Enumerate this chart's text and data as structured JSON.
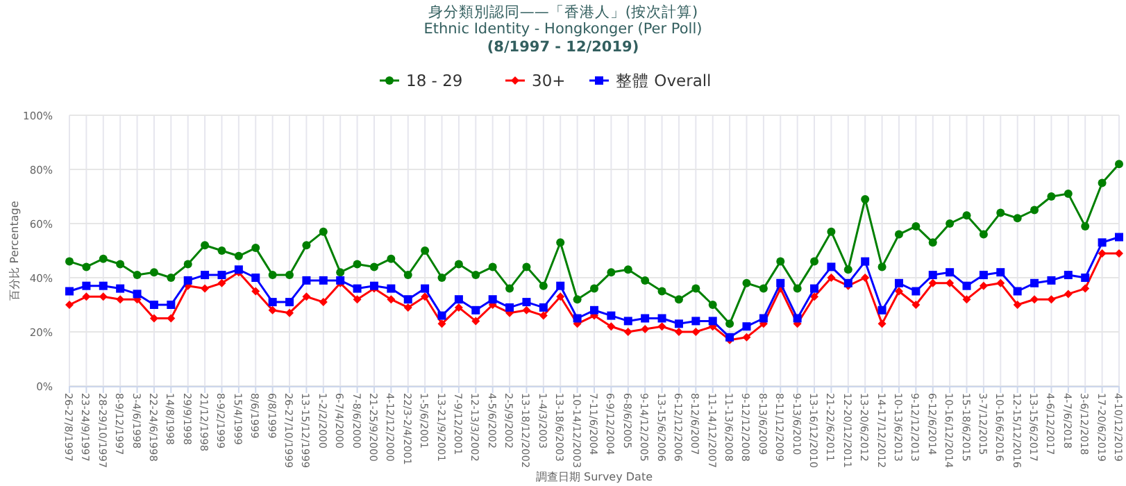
{
  "chart_data": {
    "type": "line",
    "title": "身分類別認同——「香港人」(按次計算)",
    "subtitle": "Ethnic Identity - Hongkonger (Per Poll)",
    "annotations": [
      "(8/1997 - 12/2019)"
    ],
    "xlabel": "調查日期 Survey Date",
    "ylabel": "百分比 Percentage",
    "categories": [
      "26-27/8/1997",
      "23-24/9/1997",
      "28-29/10/1997",
      "8-9/12/1997",
      "3-4/6/1998",
      "22-24/6/1998",
      "14/8/1998",
      "29/9/1998",
      "21/12/1998",
      "8-9/2/1999",
      "15/4/1999",
      "8/6/1999",
      "6/8/1999",
      "26-27/10/1999",
      "13-15/12/1999",
      "1-2/2/2000",
      "6-7/4/2000",
      "7-8/6/2000",
      "21-25/9/2000",
      "4-12/12/2000",
      "22/3-2/4/2001",
      "1-5/6/2001",
      "13-21/9/2001",
      "7-9/12/2001",
      "12-13/3/2002",
      "4-5/6/2002",
      "2-5/9/2002",
      "13-18/12/2002",
      "1-4/3/2003",
      "13-18/6/2003",
      "10-14/12/2003",
      "7-11/6/2004",
      "6-9/12/2004",
      "6-8/6/2005",
      "9-14/12/2005",
      "13-15/6/2006",
      "6-12/12/2006",
      "8-12/6/2007",
      "11-14/12/2007",
      "11-13/6/2008",
      "9-12/12/2008",
      "8-13/6/2009",
      "8-11/12/2009",
      "9-13/6/2010",
      "13-16/12/2010",
      "21-22/6/2011",
      "12-20/12/2011",
      "13-20/6/2012",
      "14-17/12/2012",
      "10-13/6/2013",
      "9-12/12/2013",
      "6-12/6/2014",
      "10-16/12/2014",
      "15-18/6/2015",
      "3-7/12/2015",
      "10-16/6/2016",
      "12-15/12/2016",
      "13-15/6/2017",
      "4-6/12/2017",
      "4-7/6/2018",
      "3-6/12/2018",
      "17-20/6/2019",
      "4-10/12/2019"
    ],
    "series": [
      {
        "name": "18 - 29",
        "color": "#008000",
        "marker": "circle",
        "values": [
          46,
          44,
          47,
          45,
          41,
          42,
          40,
          45,
          52,
          50,
          48,
          51,
          41,
          41,
          52,
          57,
          42,
          45,
          44,
          47,
          41,
          50,
          40,
          45,
          41,
          44,
          36,
          44,
          37,
          53,
          32,
          36,
          42,
          43,
          39,
          35,
          32,
          36,
          30,
          23,
          38,
          36,
          46,
          36,
          46,
          57,
          43,
          69,
          44,
          56,
          59,
          53,
          60,
          63,
          56,
          64,
          62,
          65,
          70,
          71,
          59,
          75,
          82
        ]
      },
      {
        "name": "30+",
        "color": "#ff0000",
        "marker": "diamond",
        "values": [
          30,
          33,
          33,
          32,
          32,
          25,
          25,
          37,
          36,
          38,
          42,
          35,
          28,
          27,
          33,
          31,
          38,
          32,
          36,
          32,
          29,
          33,
          23,
          29,
          24,
          30,
          27,
          28,
          26,
          33,
          23,
          26,
          22,
          20,
          21,
          22,
          20,
          20,
          22,
          17,
          18,
          23,
          36,
          23,
          33,
          40,
          37,
          40,
          23,
          35,
          30,
          38,
          38,
          32,
          37,
          38,
          30,
          32,
          32,
          34,
          36,
          49,
          49
        ]
      },
      {
        "name": "整體 Overall",
        "color": "#0000ff",
        "marker": "square",
        "values": [
          35,
          37,
          37,
          36,
          34,
          30,
          30,
          39,
          41,
          41,
          43,
          40,
          31,
          31,
          39,
          39,
          39,
          36,
          37,
          36,
          32,
          36,
          26,
          32,
          28,
          32,
          29,
          31,
          29,
          37,
          25,
          28,
          26,
          24,
          25,
          25,
          23,
          24,
          24,
          18,
          22,
          25,
          38,
          25,
          36,
          44,
          38,
          46,
          28,
          38,
          35,
          41,
          42,
          37,
          41,
          42,
          35,
          38,
          39,
          41,
          40,
          53,
          55
        ]
      }
    ],
    "ylim": [
      0,
      100
    ],
    "yticks": [
      {
        "value": 0,
        "label": "0%"
      },
      {
        "value": 20,
        "label": "20%"
      },
      {
        "value": 40,
        "label": "40%"
      },
      {
        "value": 60,
        "label": "60%"
      },
      {
        "value": 80,
        "label": "80%"
      },
      {
        "value": 100,
        "label": "100%"
      }
    ],
    "grid": true,
    "legend": "top"
  }
}
